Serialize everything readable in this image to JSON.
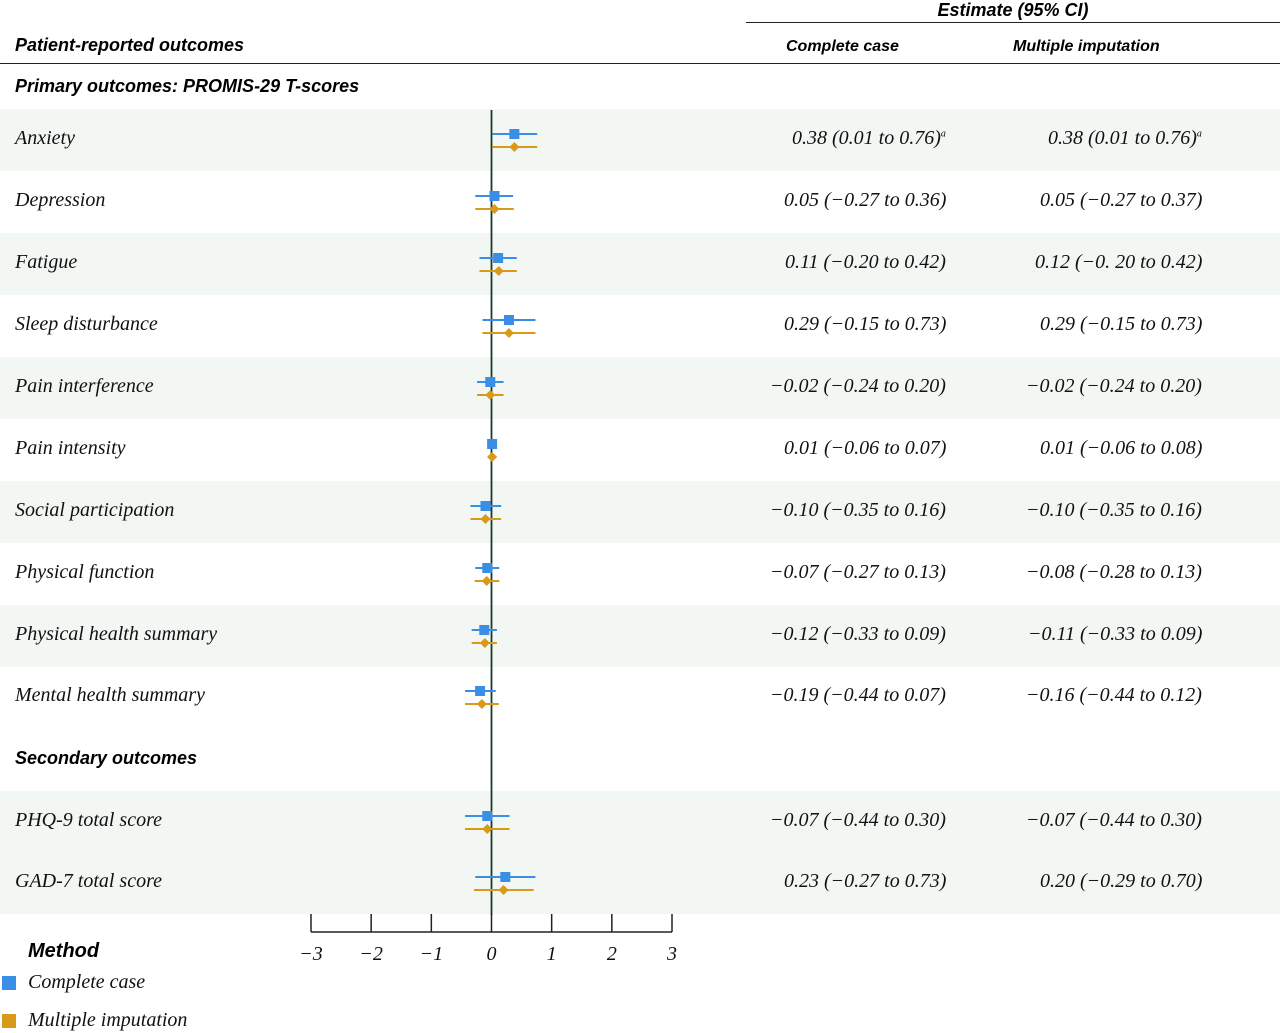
{
  "colors": {
    "complete_case": "#3a8ee6",
    "multiple_imputation": "#d89a18",
    "row_shade": "#f2f7f4",
    "zero_line": "#1a3a2a"
  },
  "header": {
    "estimate_label": "Estimate (95% CI)",
    "outcomes_label": "Patient-reported outcomes",
    "complete_case_label": "Complete case",
    "multiple_imputation_label": "Multiple imputation"
  },
  "sections": {
    "primary": "Primary outcomes: PROMIS-29 T-scores",
    "secondary": "Secondary outcomes"
  },
  "chart_data": {
    "type": "forest",
    "xlim": [
      -3,
      3
    ],
    "xticks": [
      "−3",
      "−2",
      "−1",
      "0",
      "1",
      "2",
      "3"
    ],
    "legend_title": "Method",
    "series": [
      {
        "name": "Complete case"
      },
      {
        "name": "Multiple imputation"
      }
    ],
    "rows": [
      {
        "label": "Anxiety",
        "cc": [
          0.38,
          0.01,
          0.76
        ],
        "mi": [
          0.38,
          0.01,
          0.76
        ],
        "cc_text": "0.38 (0.01 to 0.76)",
        "mi_text": "0.38 (0.01 to 0.76)",
        "cc_mark": "a",
        "mi_mark": "a"
      },
      {
        "label": "Depression",
        "cc": [
          0.05,
          -0.27,
          0.36
        ],
        "mi": [
          0.05,
          -0.27,
          0.37
        ],
        "cc_text": "0.05 (−0.27 to 0.36)",
        "mi_text": "0.05 (−0.27 to 0.37)"
      },
      {
        "label": "Fatigue",
        "cc": [
          0.11,
          -0.2,
          0.42
        ],
        "mi": [
          0.12,
          -0.2,
          0.42
        ],
        "cc_text": "0.11 (−0.20 to 0.42)",
        "mi_text": "0.12 (−0. 20 to 0.42)"
      },
      {
        "label": "Sleep disturbance",
        "cc": [
          0.29,
          -0.15,
          0.73
        ],
        "mi": [
          0.29,
          -0.15,
          0.73
        ],
        "cc_text": "0.29 (−0.15 to 0.73)",
        "mi_text": "0.29 (−0.15 to 0.73)"
      },
      {
        "label": "Pain interference",
        "cc": [
          -0.02,
          -0.24,
          0.2
        ],
        "mi": [
          -0.02,
          -0.24,
          0.2
        ],
        "cc_text": "−0.02 (−0.24 to 0.20)",
        "mi_text": "−0.02 (−0.24 to 0.20)"
      },
      {
        "label": "Pain intensity",
        "cc": [
          0.01,
          -0.06,
          0.07
        ],
        "mi": [
          0.01,
          -0.06,
          0.08
        ],
        "cc_text": "0.01 (−0.06 to 0.07)",
        "mi_text": "0.01 (−0.06 to 0.08)"
      },
      {
        "label": "Social participation",
        "cc": [
          -0.1,
          -0.35,
          0.16
        ],
        "mi": [
          -0.1,
          -0.35,
          0.16
        ],
        "cc_text": "−0.10 (−0.35 to 0.16)",
        "mi_text": "−0.10 (−0.35 to 0.16)"
      },
      {
        "label": "Physical function",
        "cc": [
          -0.07,
          -0.27,
          0.13
        ],
        "mi": [
          -0.08,
          -0.28,
          0.13
        ],
        "cc_text": "−0.07 (−0.27 to 0.13)",
        "mi_text": "−0.08 (−0.28 to 0.13)"
      },
      {
        "label": "Physical health summary",
        "cc": [
          -0.12,
          -0.33,
          0.09
        ],
        "mi": [
          -0.11,
          -0.33,
          0.09
        ],
        "cc_text": "−0.12 (−0.33 to 0.09)",
        "mi_text": "−0.11 (−0.33 to 0.09)"
      },
      {
        "label": "Mental health summary",
        "cc": [
          -0.19,
          -0.44,
          0.07
        ],
        "mi": [
          -0.16,
          -0.44,
          0.12
        ],
        "cc_text": "−0.19 (−0.44 to 0.07)",
        "mi_text": "−0.16 (−0.44 to 0.12)"
      },
      {
        "label": "PHQ-9 total score",
        "cc": [
          -0.07,
          -0.44,
          0.3
        ],
        "mi": [
          -0.07,
          -0.44,
          0.3
        ],
        "cc_text": "−0.07 (−0.44 to 0.30)",
        "mi_text": "−0.07 (−0.44 to 0.30)"
      },
      {
        "label": "GAD-7 total score",
        "cc": [
          0.23,
          -0.27,
          0.73
        ],
        "mi": [
          0.2,
          -0.29,
          0.7
        ],
        "cc_text": "0.23 (−0.27 to 0.73)",
        "mi_text": "0.20 (−0.29 to 0.70)"
      }
    ]
  }
}
